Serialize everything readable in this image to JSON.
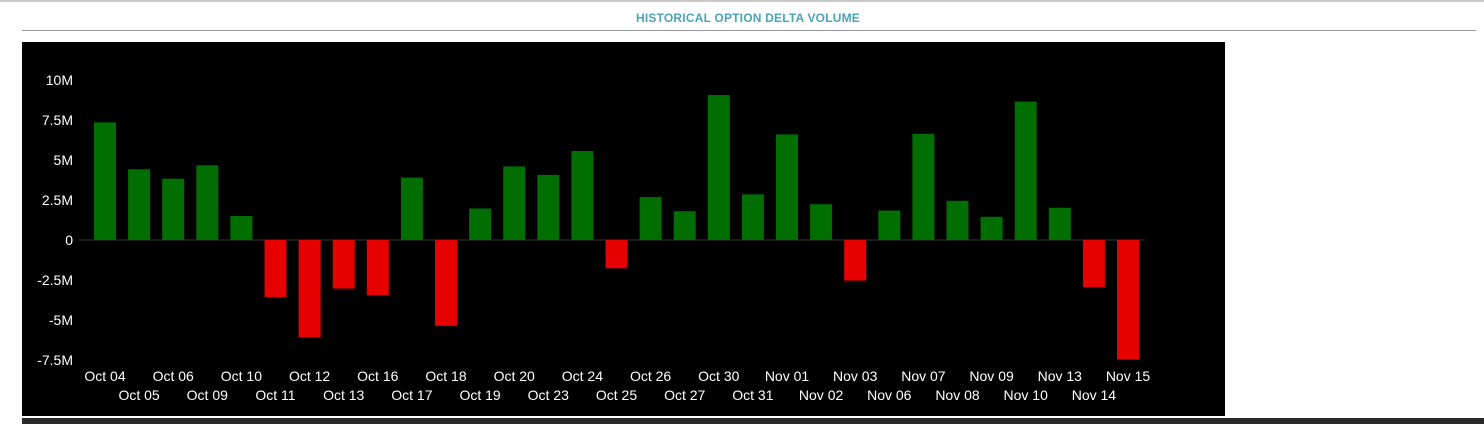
{
  "panel": {
    "title": "HISTORICAL OPTION DELTA VOLUME"
  },
  "colors": {
    "positive": "#006e00",
    "negative": "#e60000",
    "chart_background": "#000000",
    "text": "#ffffff",
    "title": "#4aa3b8"
  },
  "chart_data": {
    "type": "bar",
    "title": "HISTORICAL OPTION DELTA VOLUME",
    "xlabel": "",
    "ylabel": "",
    "ylim": [
      -7500000,
      10000000
    ],
    "yticks": [
      10000000,
      7500000,
      5000000,
      2500000,
      0,
      -2500000,
      -5000000,
      -7500000
    ],
    "ytick_labels": [
      "10M",
      "7.5M",
      "5M",
      "2.5M",
      "0",
      "-2.5M",
      "-5M",
      "-7.5M"
    ],
    "grid": false,
    "legend": "none",
    "categories": [
      "Oct 04",
      "Oct 05",
      "Oct 06",
      "Oct 09",
      "Oct 10",
      "Oct 11",
      "Oct 12",
      "Oct 13",
      "Oct 16",
      "Oct 17",
      "Oct 18",
      "Oct 19",
      "Oct 20",
      "Oct 23",
      "Oct 24",
      "Oct 25",
      "Oct 26",
      "Oct 27",
      "Oct 30",
      "Oct 31",
      "Nov 01",
      "Nov 02",
      "Nov 03",
      "Nov 06",
      "Nov 07",
      "Nov 08",
      "Nov 09",
      "Nov 10",
      "Nov 13",
      "Nov 14",
      "Nov 15"
    ],
    "values": [
      7350000,
      4420000,
      3830000,
      4670000,
      1500000,
      -3570000,
      -6080000,
      -3040000,
      -3450000,
      3900000,
      -5370000,
      1970000,
      4600000,
      4070000,
      5560000,
      -1770000,
      2680000,
      1800000,
      9060000,
      2850000,
      6600000,
      2240000,
      -2540000,
      1840000,
      6640000,
      2450000,
      1450000,
      8650000,
      2020000,
      -2950000,
      -7470000
    ]
  }
}
